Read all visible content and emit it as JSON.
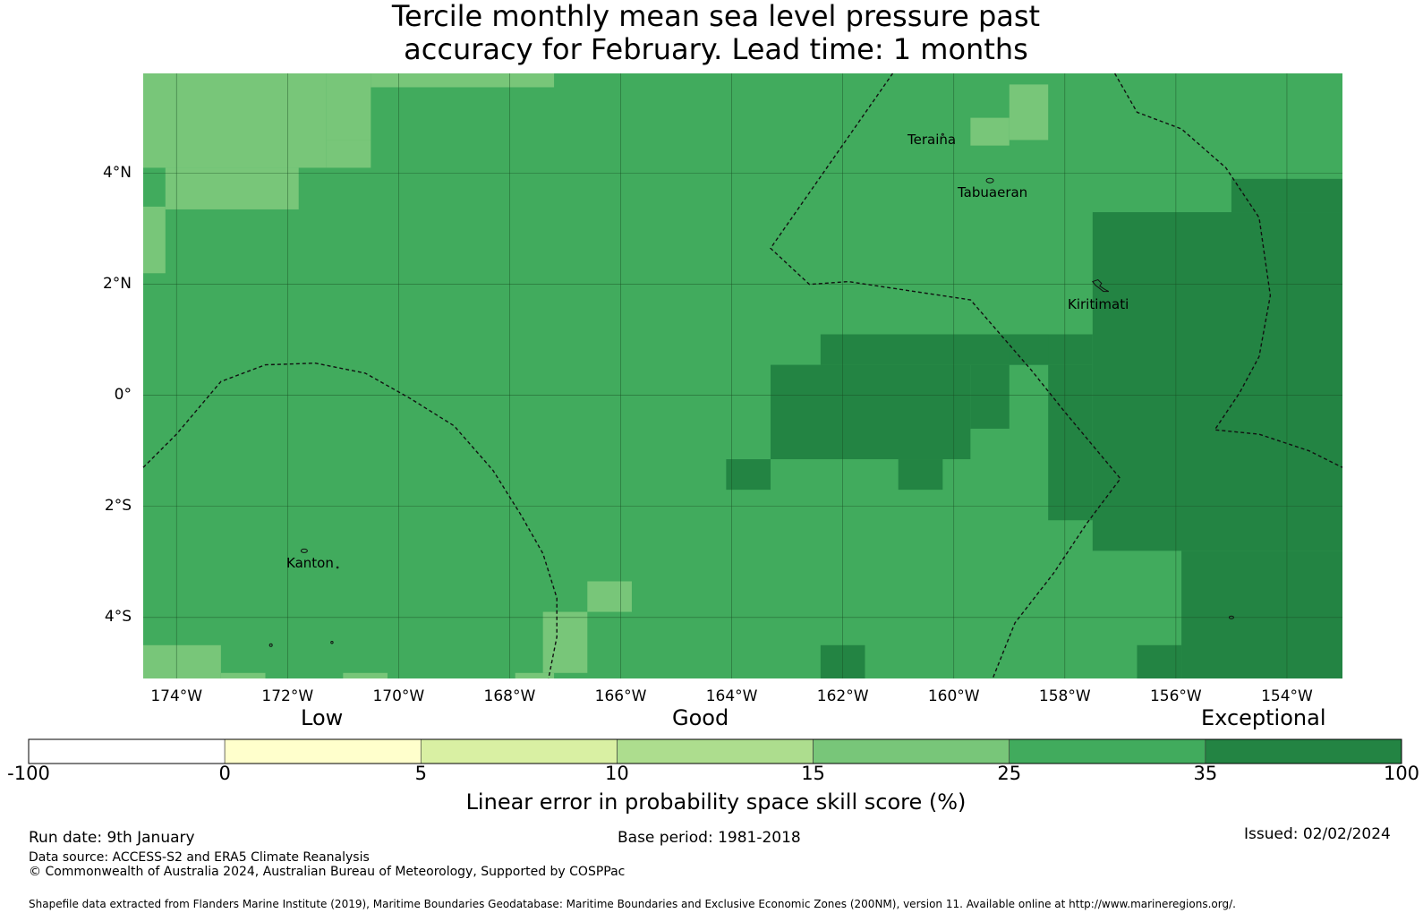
{
  "title_line1": "Tercile monthly mean sea level pressure past",
  "title_line2": "accuracy for February. Lead time: 1 months",
  "map": {
    "lon_range": [
      -174.6,
      -153.0
    ],
    "lat_range": [
      -5.1,
      5.8
    ],
    "x_ticks": [
      "174°W",
      "172°W",
      "170°W",
      "168°W",
      "166°W",
      "164°W",
      "162°W",
      "160°W",
      "158°W",
      "156°W",
      "154°W"
    ],
    "y_ticks": [
      "4°N",
      "2°N",
      "0°",
      "2°S",
      "4°S"
    ],
    "places": {
      "teraina": "Teraina",
      "tabuaeran": "Tabuaeran",
      "kiritimati": "Kiritimati",
      "kanton": "Kanton"
    },
    "colors": {
      "lt15": "#aadb8e",
      "c15": "#78c679",
      "c25": "#41ab5d",
      "c35": "#238443",
      "grid": "#1a4d22",
      "eez": "#111111"
    },
    "cells_15_25": [
      [
        -174.6,
        -171.3,
        5.8,
        4.1
      ],
      [
        -171.3,
        -170.5,
        5.8,
        4.6
      ],
      [
        -174.6,
        -174.2,
        3.4,
        2.2
      ],
      [
        -174.2,
        -171.8,
        4.1,
        3.35
      ],
      [
        -171.3,
        -170.5,
        4.6,
        4.1
      ],
      [
        -170.5,
        -167.2,
        5.8,
        5.55
      ],
      [
        -159.0,
        -158.3,
        5.6,
        4.6
      ],
      [
        -159.7,
        -159.0,
        5.0,
        4.5
      ],
      [
        -166.6,
        -165.8,
        -3.35,
        -3.9
      ],
      [
        -167.4,
        -166.6,
        -3.9,
        -5.0
      ],
      [
        -174.6,
        -173.2,
        -4.5,
        -5.1
      ],
      [
        -173.2,
        -172.4,
        -5.0,
        -5.1
      ],
      [
        -171.0,
        -170.2,
        -5.0,
        -5.1
      ],
      [
        -167.9,
        -167.2,
        -5.0,
        -5.1
      ]
    ],
    "cells_35_100": [
      [
        -157.5,
        -153.0,
        3.3,
        -2.8
      ],
      [
        -155.0,
        -153.0,
        3.9,
        3.3
      ],
      [
        -162.4,
        -157.5,
        1.1,
        0.55
      ],
      [
        -163.3,
        -159.7,
        0.55,
        -1.15
      ],
      [
        -159.7,
        -159.0,
        0.55,
        -0.6
      ],
      [
        -159.0,
        -158.3,
        1.1,
        0.55
      ],
      [
        -158.3,
        -157.5,
        0.55,
        -2.25
      ],
      [
        -164.1,
        -163.3,
        -1.15,
        -1.7
      ],
      [
        -161.0,
        -160.2,
        -1.15,
        -1.7
      ],
      [
        -155.9,
        -153.0,
        -2.8,
        -5.1
      ],
      [
        -156.7,
        -155.9,
        -4.5,
        -5.1
      ],
      [
        -162.4,
        -161.6,
        -4.5,
        -5.1
      ]
    ]
  },
  "colorbar": {
    "category_low": "Low",
    "category_good": "Good",
    "category_exceptional": "Exceptional",
    "bin_colors": [
      "#ffffff",
      "#ffffcc",
      "#d9f0a3",
      "#addd8e",
      "#78c679",
      "#41ab5d",
      "#238443"
    ],
    "tick_labels": [
      "-100",
      "0",
      "5",
      "10",
      "15",
      "25",
      "35",
      "100"
    ],
    "label": "Linear error in probability space skill score (%)"
  },
  "footer": {
    "run_date": "Run date: 9th January",
    "base_period": "Base period: 1981-2018",
    "issued": "Issued: 02/02/2024",
    "data_source": "Data source: ACCESS-S2 and ERA5 Climate Reanalysis",
    "copyright": "© Commonwealth of Australia 2024, Australian Bureau of Meteorology, Supported by COSPPac",
    "shapefile": "Shapefile data extracted from Flanders Marine Institute (2019), Maritime Boundaries Geodatabase: Maritime Boundaries and Exclusive Economic Zones (200NM), version 11. Available online at http://www.marineregions.org/."
  }
}
